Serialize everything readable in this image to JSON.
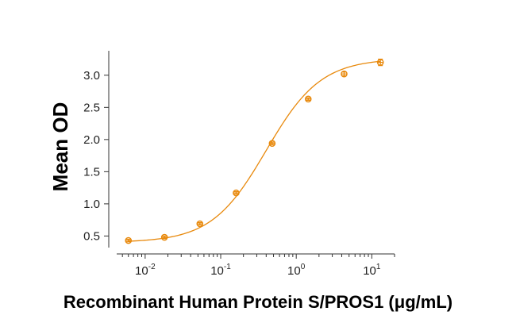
{
  "chart_data": {
    "type": "scatter",
    "xscale": "log",
    "title": "",
    "xlabel": "Recombinant Human Protein S/PROS1 (μg/mL)",
    "ylabel": "Mean OD",
    "xlim": [
      0.0042,
      20
    ],
    "ylim": [
      0.32,
      3.38
    ],
    "x_ticks": [
      {
        "value": 0.01,
        "base": "10",
        "exp": "-2"
      },
      {
        "value": 0.1,
        "base": "10",
        "exp": "-1"
      },
      {
        "value": 1,
        "base": "10",
        "exp": "0"
      },
      {
        "value": 10,
        "base": "10",
        "exp": "1"
      }
    ],
    "y_ticks": [
      "0.5",
      "1.0",
      "1.5",
      "2.0",
      "2.5",
      "3.0"
    ],
    "series": [
      {
        "color": "#E8890C",
        "x": [
          0.006,
          0.018,
          0.053,
          0.16,
          0.48,
          1.44,
          4.3,
          13
        ],
        "y": [
          0.43,
          0.48,
          0.69,
          1.17,
          1.94,
          2.63,
          3.02,
          3.2
        ],
        "error": [
          0.02,
          0.02,
          0.02,
          0.02,
          0.02,
          0.02,
          0.03,
          0.05
        ],
        "fit": {
          "type": "4PL",
          "bottom": 0.4,
          "top": 3.26,
          "ec50": 0.4,
          "hill": 1.2
        }
      }
    ]
  }
}
